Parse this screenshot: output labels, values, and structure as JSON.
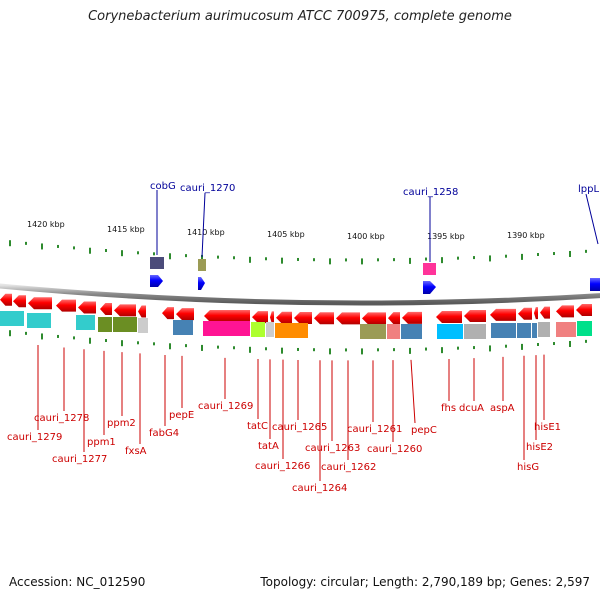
{
  "title": "Corynebacterium aurimucosum ATCC 700975, complete genome",
  "footer": {
    "accession": "Accession: NC_012590",
    "stats": "Topology: circular; Length: 2,790,189 bp; Genes: 2,597"
  },
  "scale_labels": [
    "1420 kbp",
    "1415 kbp",
    "1410 kbp",
    "1405 kbp",
    "1400 kbp",
    "1395 kbp",
    "1390 kbp"
  ],
  "colors": {
    "reverse_gene": "#ff0000",
    "forward_gene": "#0000ff",
    "label_reverse": "#cc0000",
    "label_forward": "#000099",
    "tick": "#2e8b2e",
    "backbone": "#9a9a9a"
  },
  "forward_labels": [
    "cobG",
    "cauri_1270",
    "cauri_1258",
    "lppL"
  ],
  "reverse_labels": [
    "cauri_1279",
    "cauri_1278",
    "cauri_1277",
    "ppm1",
    "ppm2",
    "fxsA",
    "fabG4",
    "pepE",
    "cauri_1269",
    "tatC",
    "tatA",
    "cauri_1266",
    "cauri_1265",
    "cauri_1264",
    "cauri_1263",
    "cauri_1262",
    "cauri_1261",
    "cauri_1260",
    "pepC",
    "fhs",
    "dcuA",
    "aspA",
    "hisG",
    "hisE2",
    "hisE1"
  ]
}
